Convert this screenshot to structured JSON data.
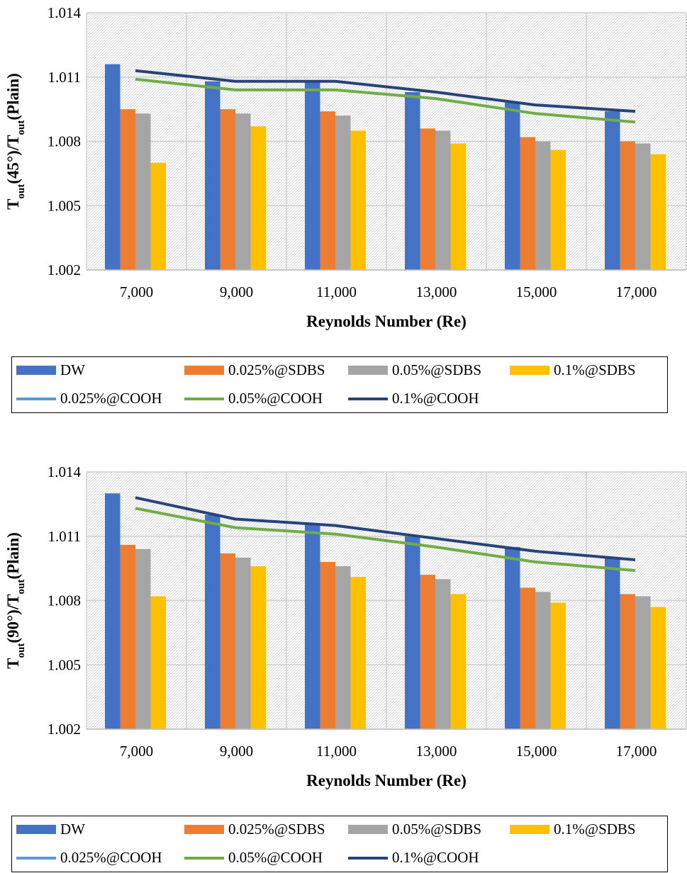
{
  "chart_data": [
    {
      "type": "bar",
      "title": "",
      "xlabel": "Reynolds Number (Re)",
      "ylabel_parts": [
        "T",
        "out",
        "(45°)/T",
        "out",
        "(Plain)"
      ],
      "ylim": [
        1.002,
        1.014
      ],
      "yticks": [
        "1.002",
        "1.005",
        "1.008",
        "1.011",
        "1.014"
      ],
      "categories": [
        "7,000",
        "9,000",
        "11,000",
        "13,000",
        "15,000",
        "17,000"
      ],
      "series": [
        {
          "name": "DW",
          "kind": "bar",
          "color": "#4472C4",
          "values": [
            1.0116,
            1.0108,
            1.0108,
            1.0103,
            1.0098,
            1.0094
          ]
        },
        {
          "name": "0.025%@SDBS",
          "kind": "bar",
          "color": "#ED7D31",
          "values": [
            1.0095,
            1.0095,
            1.0094,
            1.0086,
            1.0082,
            1.008
          ]
        },
        {
          "name": "0.05%@SDBS",
          "kind": "bar",
          "color": "#A5A5A5",
          "values": [
            1.0093,
            1.0093,
            1.0092,
            1.0085,
            1.008,
            1.0079
          ]
        },
        {
          "name": "0.1%@SDBS",
          "kind": "bar",
          "color": "#FFC000",
          "values": [
            1.007,
            1.0087,
            1.0085,
            1.0079,
            1.0076,
            1.0074
          ]
        },
        {
          "name": "0.025%@COOH",
          "kind": "line",
          "color": "#5B9BD5",
          "values": null
        },
        {
          "name": "0.05%@COOH",
          "kind": "line",
          "color": "#70AD47",
          "values": [
            1.0109,
            1.0104,
            1.0104,
            1.01,
            1.0093,
            1.0089
          ]
        },
        {
          "name": "0.1%@COOH",
          "kind": "line",
          "color": "#264478",
          "values": [
            1.0113,
            1.0108,
            1.0108,
            1.0103,
            1.0097,
            1.0094
          ]
        }
      ]
    },
    {
      "type": "bar",
      "title": "",
      "xlabel": "Reynolds Number (Re)",
      "ylabel_parts": [
        "T",
        "out",
        "(90°)/T",
        "out",
        "(Plain)"
      ],
      "ylim": [
        1.002,
        1.014
      ],
      "yticks": [
        "1.002",
        "1.005",
        "1.008",
        "1.011",
        "1.014"
      ],
      "categories": [
        "7,000",
        "9,000",
        "11,000",
        "13,000",
        "15,000",
        "17,000"
      ],
      "series": [
        {
          "name": "DW",
          "kind": "bar",
          "color": "#4472C4",
          "values": [
            1.013,
            1.012,
            1.0116,
            1.011,
            1.0105,
            1.01
          ]
        },
        {
          "name": "0.025%@SDBS",
          "kind": "bar",
          "color": "#ED7D31",
          "values": [
            1.0106,
            1.0102,
            1.0098,
            1.0092,
            1.0086,
            1.0083
          ]
        },
        {
          "name": "0.05%@SDBS",
          "kind": "bar",
          "color": "#A5A5A5",
          "values": [
            1.0104,
            1.01,
            1.0096,
            1.009,
            1.0084,
            1.0082
          ]
        },
        {
          "name": "0.1%@SDBS",
          "kind": "bar",
          "color": "#FFC000",
          "values": [
            1.0082,
            1.0096,
            1.0091,
            1.0083,
            1.0079,
            1.0077
          ]
        },
        {
          "name": "0.025%@COOH",
          "kind": "line",
          "color": "#5B9BD5",
          "values": null
        },
        {
          "name": "0.05%@COOH",
          "kind": "line",
          "color": "#70AD47",
          "values": [
            1.0123,
            1.0114,
            1.0111,
            1.0105,
            1.0098,
            1.0094
          ]
        },
        {
          "name": "0.1%@COOH",
          "kind": "line",
          "color": "#264478",
          "values": [
            1.0128,
            1.0118,
            1.0115,
            1.0109,
            1.0103,
            1.0099
          ]
        }
      ]
    }
  ]
}
